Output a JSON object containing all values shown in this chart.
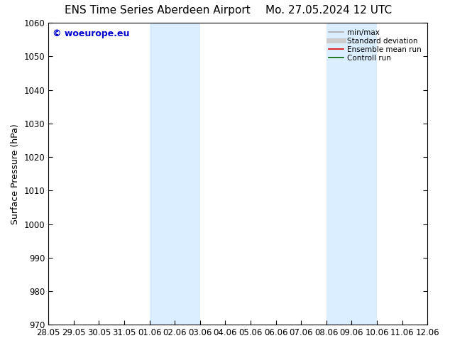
{
  "title_left": "ENS Time Series Aberdeen Airport",
  "title_right": "Mo. 27.05.2024 12 UTC",
  "ylabel": "Surface Pressure (hPa)",
  "ylim": [
    970,
    1060
  ],
  "yticks": [
    970,
    980,
    990,
    1000,
    1010,
    1020,
    1030,
    1040,
    1050,
    1060
  ],
  "xtick_labels": [
    "28.05",
    "29.05",
    "30.05",
    "31.05",
    "01.06",
    "02.06",
    "03.06",
    "04.06",
    "05.06",
    "06.06",
    "07.06",
    "08.06",
    "09.06",
    "10.06",
    "11.06",
    "12.06"
  ],
  "shaded_regions": [
    {
      "xstart_idx": 4,
      "xend_idx": 6
    },
    {
      "xstart_idx": 11,
      "xend_idx": 13
    }
  ],
  "shaded_color": "#daeeff",
  "watermark_text": "© woeurope.eu",
  "watermark_color": "#0000cc",
  "legend_entries": [
    {
      "label": "min/max",
      "color": "#aaaaaa",
      "lw": 1.2,
      "style": "solid"
    },
    {
      "label": "Standard deviation",
      "color": "#cccccc",
      "lw": 5,
      "style": "solid"
    },
    {
      "label": "Ensemble mean run",
      "color": "#dd0000",
      "lw": 1.2,
      "style": "solid"
    },
    {
      "label": "Controll run",
      "color": "#006600",
      "lw": 1.2,
      "style": "solid"
    }
  ],
  "bg_color": "#ffffff",
  "title_fontsize": 11,
  "tick_fontsize": 8.5,
  "ylabel_fontsize": 9,
  "legend_fontsize": 7.5,
  "watermark_fontsize": 9
}
